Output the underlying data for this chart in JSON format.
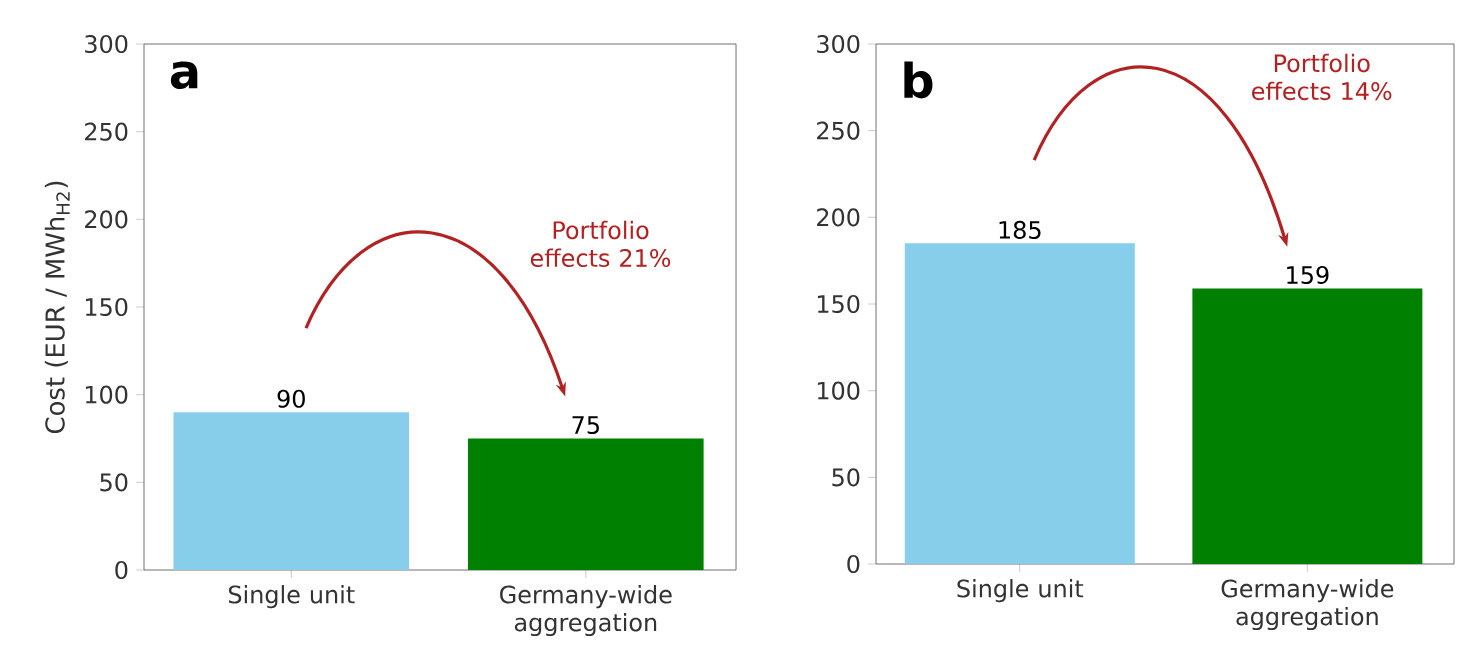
{
  "chart_data": [
    {
      "type": "bar",
      "title": "a",
      "ylabel": "Cost (EUR / MWh$_{H2}$)",
      "categories": [
        "Single unit",
        "Germany-wide aggregation"
      ],
      "values": [
        90,
        75
      ],
      "colors": [
        "#87ceeb",
        "#008000"
      ],
      "ylim": [
        0,
        300
      ],
      "yticks": [
        0,
        50,
        100,
        150,
        200,
        250,
        300
      ],
      "data_labels": true,
      "annotations": [
        "Portfolio effects 21%"
      ]
    },
    {
      "type": "bar",
      "title": "b",
      "categories": [
        "Single unit",
        "Germany-wide aggregation"
      ],
      "values": [
        185,
        159
      ],
      "colors": [
        "#87ceeb",
        "#008000"
      ],
      "ylim": [
        0,
        300
      ],
      "yticks": [
        0,
        50,
        100,
        150,
        200,
        250,
        300
      ],
      "data_labels": true,
      "annotations": [
        "Portfolio effects 14%"
      ]
    }
  ]
}
